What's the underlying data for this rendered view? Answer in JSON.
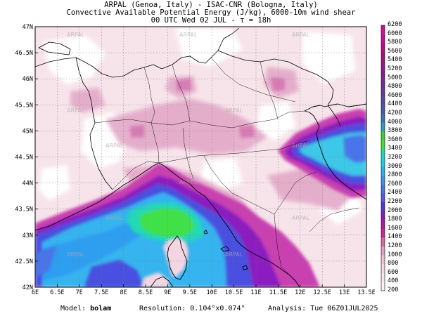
{
  "title": {
    "line1": "ARPAL (Genoa, Italy)  -  ISAC-CNR (Bologna, Italy)",
    "line2": "Convective Available Potential Energy (J/kg), 6000-10m wind shear",
    "line3": "00 UTC Wed 02 JUL  -  τ = 18h"
  },
  "map": {
    "lon_range": [
      6,
      13.5
    ],
    "lat_range": [
      42,
      47
    ],
    "lon_ticks": [
      "6E",
      "6.5E",
      "7E",
      "7.5E",
      "8E",
      "8.5E",
      "9E",
      "9.5E",
      "10E",
      "10.5E",
      "11E",
      "11.5E",
      "12E",
      "12.5E",
      "13E",
      "13.5E"
    ],
    "lat_ticks": [
      "42N",
      "42.5N",
      "43N",
      "43.5N",
      "44N",
      "44.5N",
      "45N",
      "45.5N",
      "46N",
      "46.5N",
      "47N"
    ],
    "watermark": "ARPAL",
    "regions": [
      {
        "name": "sea-high-cape",
        "color": "#35b4f0"
      },
      {
        "name": "sea-core-cape",
        "color": "#40e048"
      },
      {
        "name": "adriatic-cape",
        "color": "#3cc8e8"
      }
    ]
  },
  "colorbar": {
    "labels": [
      "6200",
      "6000",
      "5800",
      "5600",
      "5400",
      "5200",
      "5000",
      "4800",
      "4600",
      "4400",
      "4200",
      "4000",
      "3800",
      "3600",
      "3400",
      "3200",
      "3000",
      "2800",
      "2600",
      "2400",
      "2200",
      "2000",
      "1800",
      "1600",
      "1400",
      "1200",
      "1000",
      "800",
      "600",
      "400",
      "200"
    ],
    "colors": [
      "#d4109a",
      "#c80f92",
      "#b80f82",
      "#a81082",
      "#981a86",
      "#881e8c",
      "#7a2a90",
      "#6a3a98",
      "#5a4aa0",
      "#4c5aa8",
      "#3e72b4",
      "#2ea0b8",
      "#38d040",
      "#48e028",
      "#22d8b8",
      "#18d0e8",
      "#28b4f0",
      "#3c94f0",
      "#4a74e8",
      "#5a58e0",
      "#4c3ad8",
      "#8c1ab8",
      "#b018a8",
      "#c82898",
      "#d86aa8",
      "#e0a0c4",
      "#eec0d4",
      "#f4d6e2",
      "#f8e6ec",
      "#fbf0f3"
    ]
  },
  "footer": {
    "model_label": "Model:",
    "model_value": "bolam",
    "resolution_label": "Resolution:",
    "resolution_value": "0.104°x0.074°",
    "analysis_label": "Analysis:",
    "analysis_value": "Tue 06Z01JUL2025"
  }
}
